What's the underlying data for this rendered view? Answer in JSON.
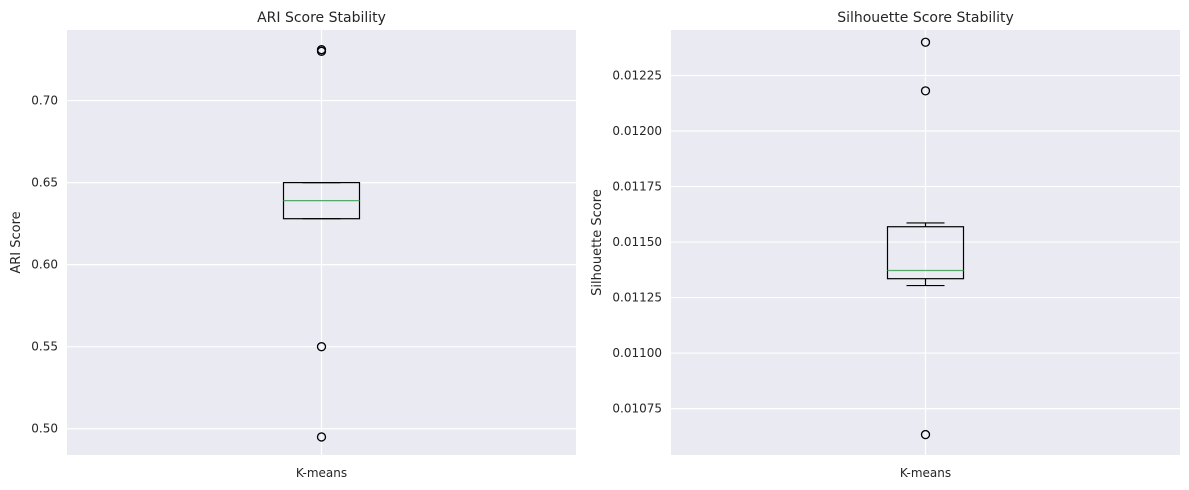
{
  "chart_data": [
    {
      "type": "box",
      "title": "ARI Score Stability",
      "xlabel": "",
      "ylabel": "ARI Score",
      "categories": [
        "K-means"
      ],
      "ylim": [
        0.484,
        0.743
      ],
      "yticks": [
        0.5,
        0.55,
        0.6,
        0.65,
        0.7
      ],
      "ytick_labels": [
        "0.50",
        "0.55",
        "0.60",
        "0.65",
        "0.70"
      ],
      "box": {
        "q1": 0.628,
        "median": 0.639,
        "q3": 0.65,
        "whisker_low": 0.628,
        "whisker_high": 0.65,
        "outliers": [
          0.73,
          0.731,
          0.55,
          0.495
        ]
      },
      "grid": true
    },
    {
      "type": "box",
      "title": "Silhouette Score Stability",
      "xlabel": "",
      "ylabel": "Silhouette Score",
      "categories": [
        "K-means"
      ],
      "ylim": [
        0.010541,
        0.012455
      ],
      "yticks": [
        0.01075,
        0.011,
        0.01125,
        0.0115,
        0.01175,
        0.012,
        0.01225
      ],
      "ytick_labels": [
        "0.01075",
        "0.01100",
        "0.01125",
        "0.01150",
        "0.01175",
        "0.01200",
        "0.01225"
      ],
      "box": {
        "q1": 0.011335,
        "median": 0.011372,
        "q3": 0.011569,
        "whisker_low": 0.011304,
        "whisker_high": 0.011586,
        "outliers": [
          0.0124,
          0.012181,
          0.010633
        ]
      },
      "grid": true
    }
  ],
  "style": {
    "plot_background": "#eaeaf2",
    "grid_color": "#ffffff",
    "median_color": "#55a868",
    "box_color": "#000000",
    "text_color": "#262626"
  }
}
